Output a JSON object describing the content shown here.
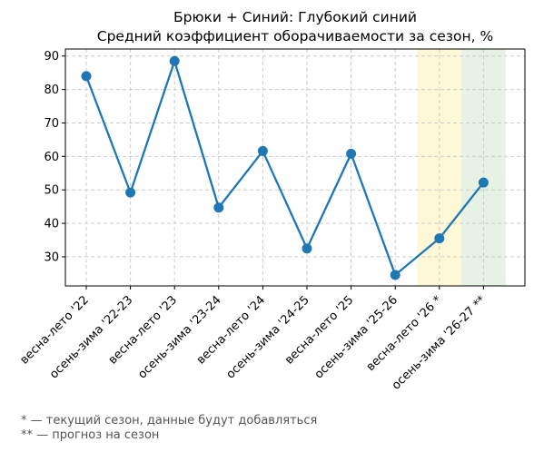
{
  "chart_data": {
    "type": "line",
    "title_lines": [
      "Брюки + Синий: Глубокий синий",
      "Средний коэффициент оборачиваемости за сезон, %"
    ],
    "xlabel": "",
    "ylabel": "",
    "categories": [
      "весна-лето '22",
      "осень-зима '22-23",
      "весна-лето '23",
      "осень-зима '23-24",
      "весна-лето '24",
      "осень-зима '24-25",
      "весна-лето '25",
      "осень-зима '25-26",
      "весна-лето '26 *",
      "осень-зима '26-27 **"
    ],
    "series": [
      {
        "values": [
          84.0,
          49.2,
          88.5,
          44.7,
          61.6,
          32.5,
          60.8,
          24.6,
          35.5,
          52.2
        ],
        "color": "#1f77b4"
      }
    ],
    "ylim": [
      21.3,
      92.1
    ],
    "yticks": [
      30,
      40,
      50,
      60,
      70,
      80,
      90
    ],
    "grid": true,
    "highlights": [
      {
        "category_index": 8,
        "color": "#fff8d6"
      },
      {
        "category_index": 9,
        "color": "#e6f2e3"
      }
    ]
  },
  "notes": [
    "* — текущий сезон, данные будут добавляться",
    "** — прогноз на сезон"
  ]
}
